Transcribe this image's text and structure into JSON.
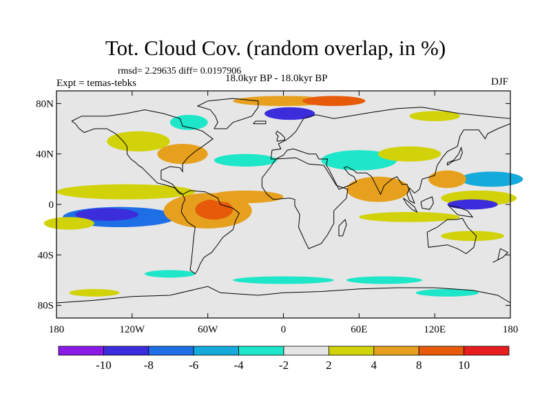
{
  "figure": {
    "title": "Tot. Cloud Cov. (random overlap, in %)",
    "stats_line": "rmsd= 2.29635 diff= 0.0197906",
    "experiment": "Expt = temas-tebks",
    "period": "18.0kyr BP - 18.0kyr BP",
    "season": "DJF"
  },
  "map": {
    "projection": "cylindrical equidistant",
    "lon_range": [
      -180,
      180
    ],
    "lat_range": [
      -90,
      90
    ],
    "background_color": "#e6e6e6",
    "coastline_color": "#000000",
    "y_ticks": [
      {
        "lat": 80,
        "label": "80N"
      },
      {
        "lat": 40,
        "label": "40N"
      },
      {
        "lat": 0,
        "label": "0"
      },
      {
        "lat": -40,
        "label": "40S"
      },
      {
        "lat": -80,
        "label": "80S"
      }
    ],
    "x_ticks": [
      {
        "lon": -180,
        "label": "180"
      },
      {
        "lon": -120,
        "label": "120W"
      },
      {
        "lon": -60,
        "label": "60W"
      },
      {
        "lon": 0,
        "label": "0"
      },
      {
        "lon": 60,
        "label": "60E"
      },
      {
        "lon": 120,
        "label": "120E"
      },
      {
        "lon": 180,
        "label": "180"
      }
    ]
  },
  "colorbar": {
    "colors": [
      "#8a1be6",
      "#3c2ddc",
      "#1e6ee6",
      "#14aadc",
      "#1ee6c8",
      "#e6e6e6",
      "#d2d20a",
      "#e6a01e",
      "#e65a0a",
      "#e61e1e"
    ],
    "labels": [
      {
        "value": -10,
        "text": "-10"
      },
      {
        "value": -8,
        "text": "-8"
      },
      {
        "value": -6,
        "text": "-6"
      },
      {
        "value": -4,
        "text": "-4"
      },
      {
        "value": -2,
        "text": "-2"
      },
      {
        "value": 2,
        "text": "2"
      },
      {
        "value": 4,
        "text": "4"
      },
      {
        "value": 8,
        "text": "8"
      },
      {
        "value": 10,
        "text": "10"
      }
    ]
  },
  "chart_data": {
    "type": "heatmap",
    "variable": "Tot. Cloud Cov. (random overlap, in %)",
    "x_range": [
      -180,
      180
    ],
    "y_range": [
      -90,
      90
    ],
    "contour_levels": [
      -10,
      -8,
      -6,
      -4,
      -2,
      2,
      4,
      8,
      10
    ],
    "features": [
      {
        "lon": -130,
        "lat": -10,
        "w": 45,
        "h": 8,
        "v": -7
      },
      {
        "lon": -140,
        "lat": -8,
        "w": 25,
        "h": 5,
        "v": -9
      },
      {
        "lon": -60,
        "lat": -5,
        "w": 35,
        "h": 14,
        "v": 5
      },
      {
        "lon": -55,
        "lat": -4,
        "w": 15,
        "h": 8,
        "v": 8
      },
      {
        "lon": -125,
        "lat": 10,
        "w": 55,
        "h": 6,
        "v": 3
      },
      {
        "lon": -30,
        "lat": 6,
        "w": 30,
        "h": 5,
        "v": 4
      },
      {
        "lon": -115,
        "lat": 50,
        "w": 25,
        "h": 8,
        "v": 3
      },
      {
        "lon": -80,
        "lat": 40,
        "w": 20,
        "h": 8,
        "v": 4
      },
      {
        "lon": -75,
        "lat": 65,
        "w": 15,
        "h": 6,
        "v": -4
      },
      {
        "lon": 5,
        "lat": 72,
        "w": 20,
        "h": 5,
        "v": -9
      },
      {
        "lon": 0,
        "lat": 82,
        "w": 40,
        "h": 4,
        "v": 4
      },
      {
        "lon": 40,
        "lat": 82,
        "w": 25,
        "h": 4,
        "v": 8
      },
      {
        "lon": 60,
        "lat": 35,
        "w": 30,
        "h": 8,
        "v": -4
      },
      {
        "lon": 100,
        "lat": 40,
        "w": 25,
        "h": 6,
        "v": 3
      },
      {
        "lon": 75,
        "lat": 12,
        "w": 25,
        "h": 10,
        "v": 5
      },
      {
        "lon": 155,
        "lat": 5,
        "w": 30,
        "h": 6,
        "v": 3
      },
      {
        "lon": 165,
        "lat": 20,
        "w": 25,
        "h": 6,
        "v": -5
      },
      {
        "lon": 150,
        "lat": 0,
        "w": 20,
        "h": 4,
        "v": -9
      },
      {
        "lon": 130,
        "lat": 20,
        "w": 15,
        "h": 7,
        "v": 4
      },
      {
        "lon": -170,
        "lat": -15,
        "w": 20,
        "h": 5,
        "v": 3
      },
      {
        "lon": 100,
        "lat": -10,
        "w": 40,
        "h": 4,
        "v": 3
      },
      {
        "lon": 150,
        "lat": -25,
        "w": 25,
        "h": 4,
        "v": 3
      },
      {
        "lon": -90,
        "lat": -55,
        "w": 20,
        "h": 3,
        "v": -3
      },
      {
        "lon": 0,
        "lat": -60,
        "w": 40,
        "h": 3,
        "v": -3
      },
      {
        "lon": 80,
        "lat": -60,
        "w": 30,
        "h": 3,
        "v": -3
      },
      {
        "lon": 130,
        "lat": -70,
        "w": 25,
        "h": 3,
        "v": -3
      },
      {
        "lon": -150,
        "lat": -70,
        "w": 20,
        "h": 3,
        "v": 3
      },
      {
        "lon": -30,
        "lat": 35,
        "w": 25,
        "h": 5,
        "v": -3
      },
      {
        "lon": 120,
        "lat": 70,
        "w": 20,
        "h": 4,
        "v": 3
      }
    ]
  }
}
